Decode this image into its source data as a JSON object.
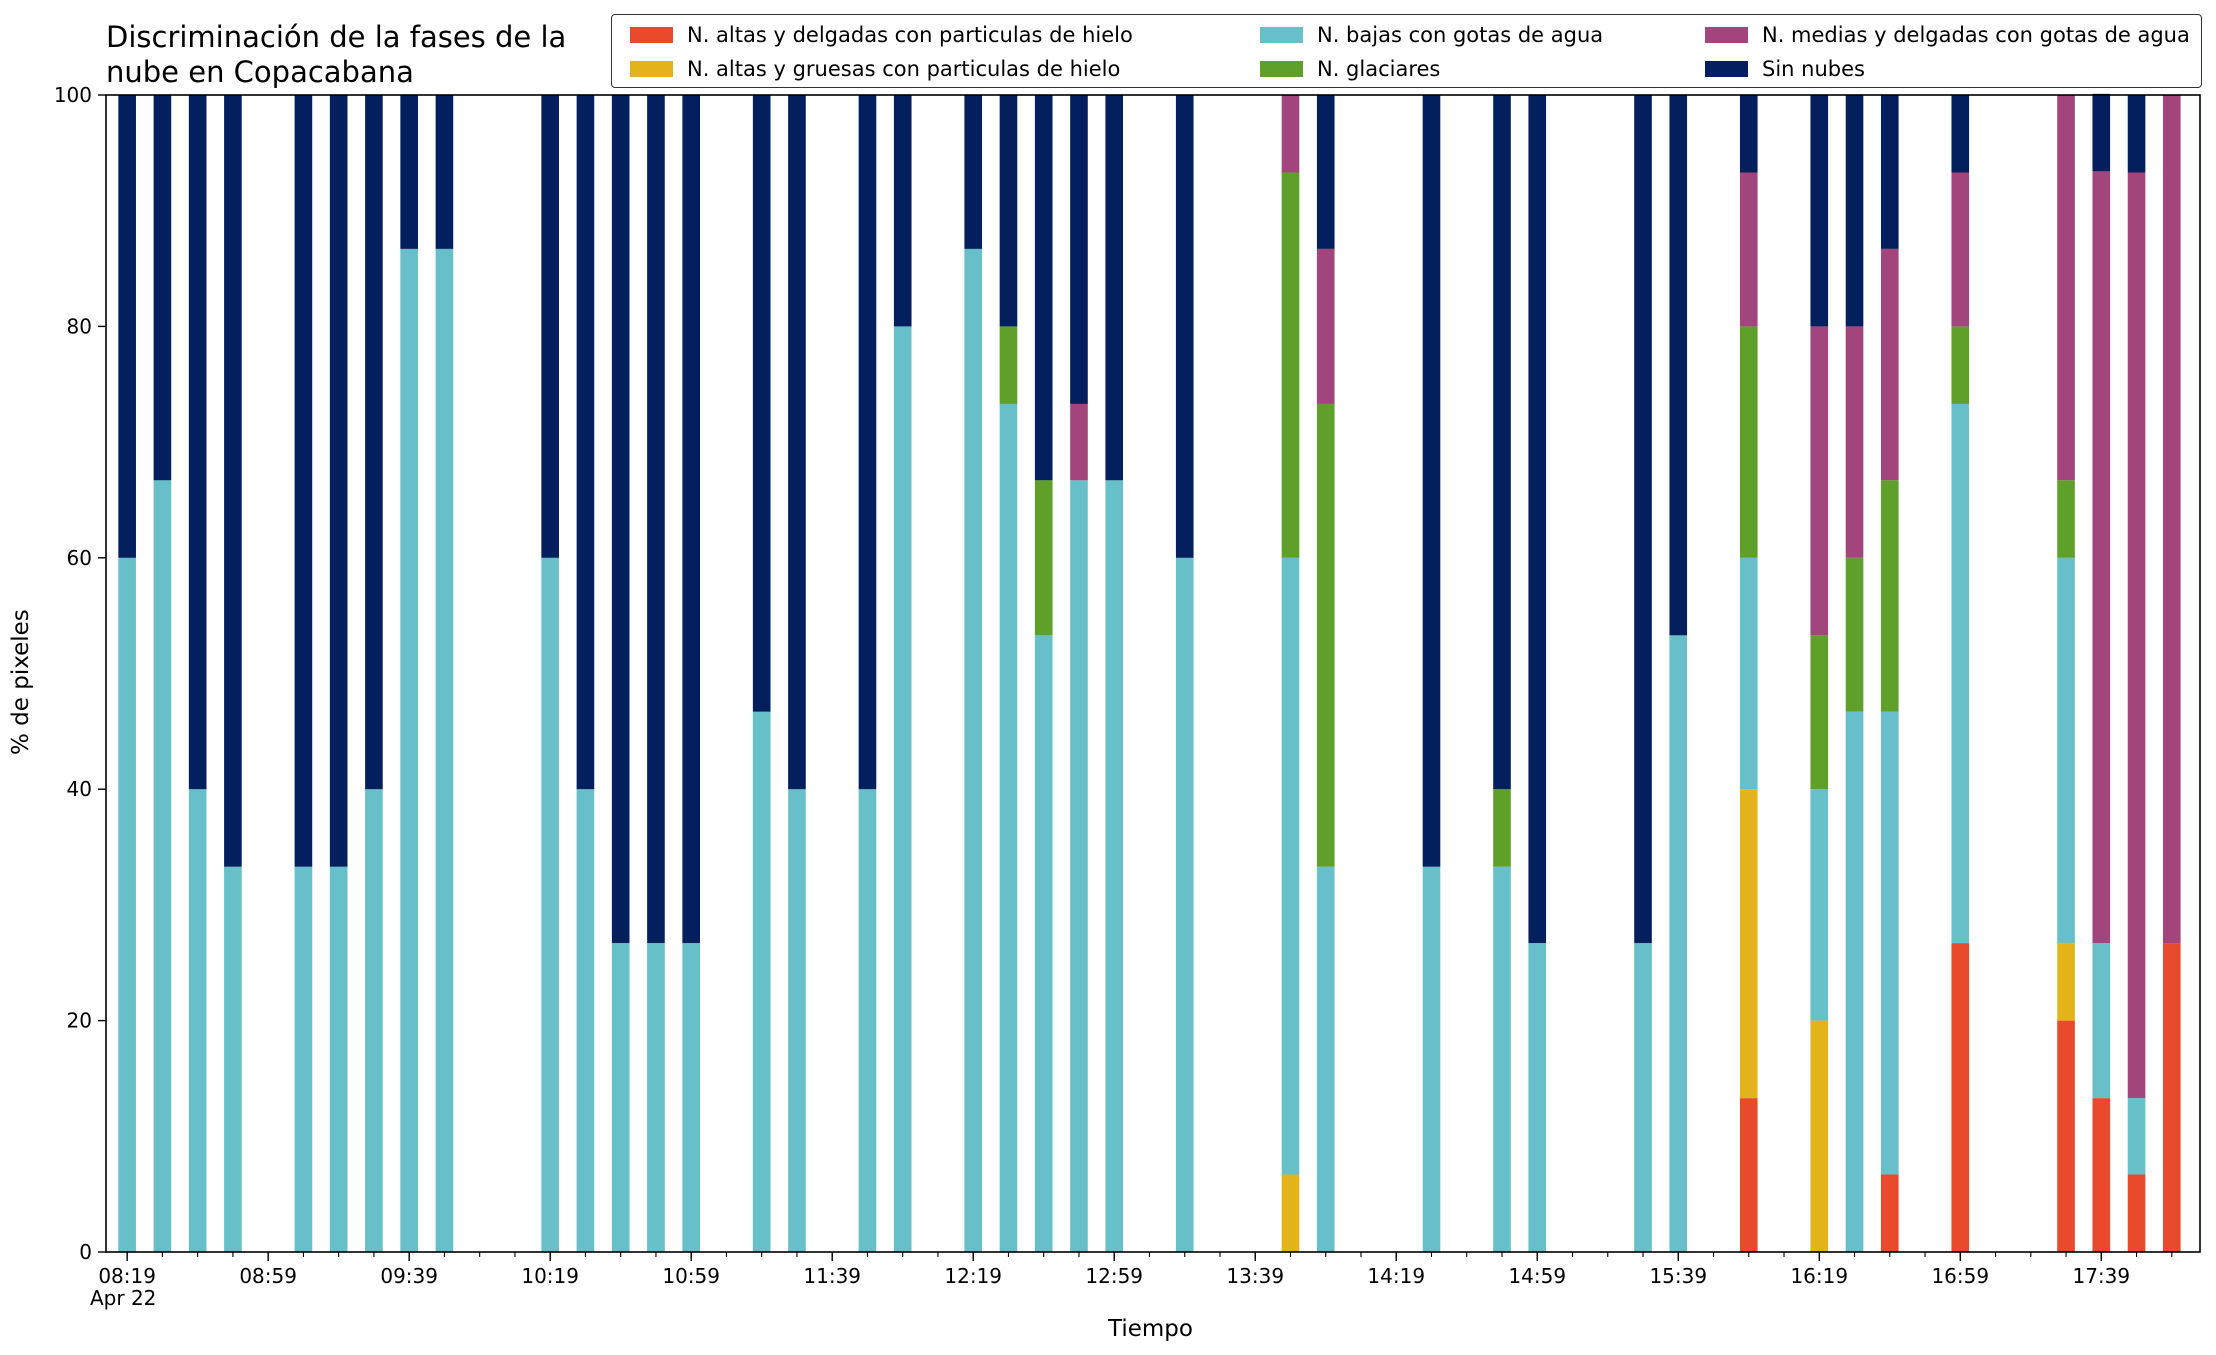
{
  "chart_data": {
    "type": "bar",
    "stacked": true,
    "title": "Discriminación de la fases de la\nnube en Copacabana",
    "xlabel": "Tiempo",
    "ylabel": "% de pixeles",
    "ylim": [
      0,
      100
    ],
    "yticks": [
      0,
      20,
      40,
      60,
      80,
      100
    ],
    "x_tick_labels": [
      "08:19",
      "08:59",
      "09:39",
      "10:19",
      "10:59",
      "11:39",
      "12:19",
      "12:59",
      "13:39",
      "14:19",
      "14:59",
      "15:39",
      "16:19",
      "16:59",
      "17:39"
    ],
    "x_date_label": "Apr 22",
    "x_range": [
      "08:13",
      "18:07"
    ],
    "x": [
      "08:19",
      "08:29",
      "08:39",
      "08:49",
      "09:09",
      "09:19",
      "09:29",
      "09:39",
      "09:49",
      "10:19",
      "10:29",
      "10:39",
      "10:49",
      "10:59",
      "11:19",
      "11:29",
      "11:49",
      "11:59",
      "12:19",
      "12:29",
      "12:39",
      "12:49",
      "12:59",
      "13:19",
      "13:49",
      "13:59",
      "14:29",
      "14:49",
      "14:59",
      "15:29",
      "15:39",
      "15:59",
      "16:19",
      "16:29",
      "16:39",
      "16:59",
      "17:29",
      "17:39",
      "17:49",
      "17:59"
    ],
    "legend_position": "top",
    "series": [
      {
        "name": "N. altas y delgadas con particulas de hielo",
        "color": "#e94a2b",
        "values": [
          0,
          0,
          0,
          0,
          0,
          0,
          0,
          0,
          0,
          0,
          0,
          0,
          0,
          0,
          0,
          0,
          0,
          0,
          0,
          0,
          0,
          0,
          0,
          0,
          0,
          0,
          0,
          0,
          0,
          0,
          0,
          13.3,
          0,
          0,
          6.7,
          26.7,
          20,
          13.3,
          6.7,
          26.7
        ]
      },
      {
        "name": "N. altas y gruesas con particulas de hielo",
        "color": "#e2b41a",
        "values": [
          0,
          0,
          0,
          0,
          0,
          0,
          0,
          0,
          0,
          0,
          0,
          0,
          0,
          0,
          0,
          0,
          0,
          0,
          0,
          0,
          0,
          0,
          0,
          0,
          6.7,
          0,
          0,
          0,
          0,
          0,
          0,
          26.7,
          20,
          0,
          0,
          0,
          6.7,
          0,
          0,
          0
        ]
      },
      {
        "name": "N. bajas con gotas de agua",
        "color": "#67bfc9",
        "values": [
          60,
          66.7,
          40,
          33.3,
          33.3,
          33.3,
          40,
          86.7,
          86.7,
          60,
          40,
          26.7,
          26.7,
          26.7,
          46.7,
          40,
          40,
          80,
          86.7,
          73.3,
          53.3,
          66.7,
          66.7,
          60,
          53.3,
          33.3,
          33.3,
          33.3,
          26.7,
          26.7,
          53.3,
          20,
          20,
          46.7,
          40,
          46.6,
          33.3,
          13.4,
          6.6,
          0
        ]
      },
      {
        "name": "N. glaciares",
        "color": "#5fa02b",
        "values": [
          0,
          0,
          0,
          0,
          0,
          0,
          0,
          0,
          0,
          0,
          0,
          0,
          0,
          0,
          0,
          0,
          0,
          0,
          0,
          6.7,
          13.4,
          0,
          0,
          0,
          33.3,
          40,
          0,
          6.7,
          0,
          0,
          0,
          20,
          13.3,
          13.3,
          20,
          6.7,
          6.7,
          0,
          0,
          0
        ]
      },
      {
        "name": "N. medias y delgadas con gotas de agua",
        "color": "#a2457c",
        "values": [
          0,
          0,
          0,
          0,
          0,
          0,
          0,
          0,
          0,
          0,
          0,
          0,
          0,
          0,
          0,
          0,
          0,
          0,
          0,
          0,
          0,
          6.6,
          0,
          0,
          6.7,
          13.4,
          0,
          0,
          0,
          0,
          0,
          13.3,
          26.7,
          20,
          20,
          13.3,
          33.3,
          66.7,
          80,
          73.3
        ]
      },
      {
        "name": "Sin nubes",
        "color": "#041f5e",
        "values": [
          40,
          33.3,
          60,
          66.7,
          66.7,
          66.7,
          60,
          13.3,
          13.3,
          40,
          60,
          73.3,
          73.3,
          73.3,
          53.3,
          60,
          60,
          20,
          13.3,
          20,
          33.3,
          26.7,
          33.3,
          40,
          0,
          13.3,
          66.7,
          60,
          73.3,
          73.3,
          46.7,
          6.7,
          20,
          20,
          13.3,
          6.7,
          0,
          6.7,
          6.7,
          0
        ]
      }
    ]
  }
}
